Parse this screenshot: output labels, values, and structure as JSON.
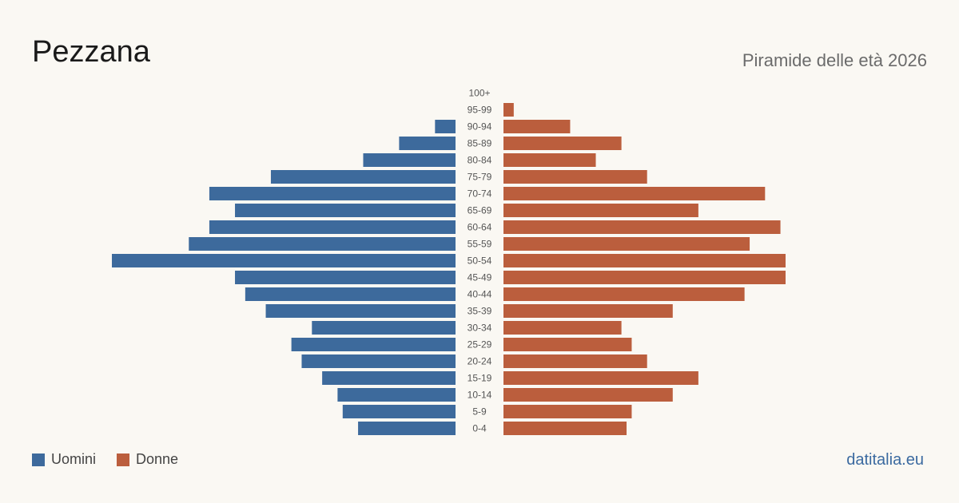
{
  "header": {
    "title": "Pezzana",
    "subtitle": "Piramide delle età 2026"
  },
  "legend": {
    "male_label": "Uomini",
    "female_label": "Donne"
  },
  "footer": {
    "source": "datitalia.eu"
  },
  "colors": {
    "male": "#3d6a9c",
    "female": "#bb5e3d",
    "label": "#555555"
  },
  "chart_data": {
    "type": "bar",
    "orientation": "horizontal-pyramid",
    "title": "",
    "categories": [
      "100+",
      "95-99",
      "90-94",
      "85-89",
      "80-84",
      "75-79",
      "70-74",
      "65-69",
      "60-64",
      "55-59",
      "50-54",
      "45-49",
      "40-44",
      "35-39",
      "30-34",
      "25-29",
      "20-24",
      "15-19",
      "10-14",
      "5-9",
      "0-4"
    ],
    "series": [
      {
        "name": "Uomini",
        "values": [
          0,
          0,
          4,
          11,
          18,
          36,
          48,
          43,
          48,
          52,
          67,
          43,
          41,
          37,
          28,
          32,
          30,
          26,
          23,
          22,
          19
        ]
      },
      {
        "name": "Donne",
        "values": [
          0,
          2,
          13,
          23,
          18,
          28,
          51,
          38,
          54,
          48,
          55,
          55,
          47,
          33,
          23,
          25,
          28,
          38,
          33,
          25,
          24
        ]
      }
    ],
    "xlim": [
      0,
      67
    ],
    "grid": false,
    "legend_position": "bottom-left"
  }
}
